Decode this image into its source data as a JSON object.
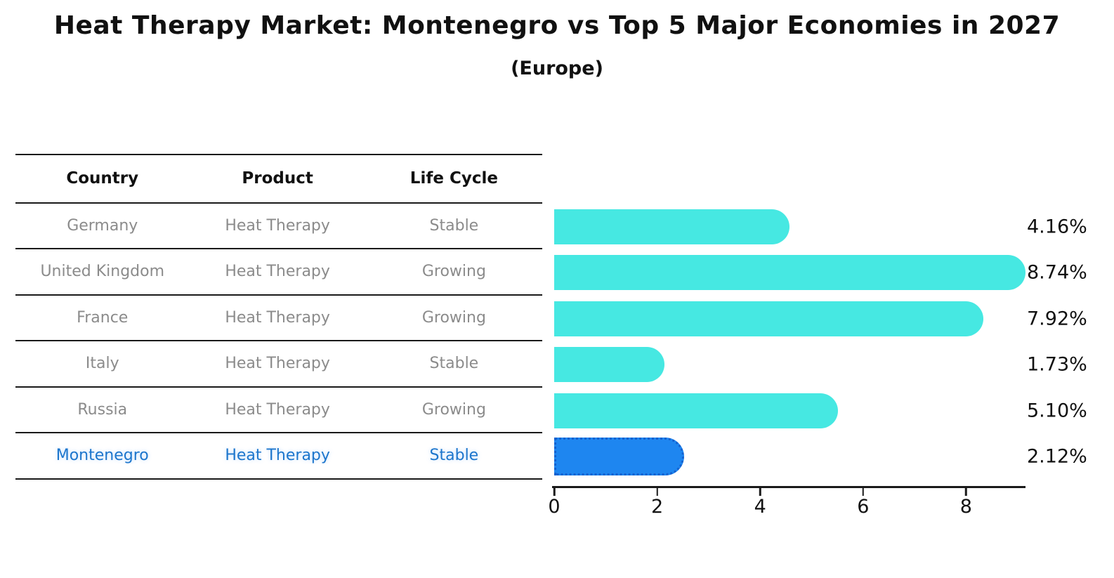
{
  "title": "Heat Therapy Market: Montenegro vs Top 5 Major Economies in 2027",
  "subtitle": "(Europe)",
  "table": {
    "headers": [
      "Country",
      "Product",
      "Life Cycle"
    ],
    "rows": [
      {
        "country": "Germany",
        "product": "Heat Therapy",
        "life_cycle": "Stable",
        "highlight": false
      },
      {
        "country": "United Kingdom",
        "product": "Heat Therapy",
        "life_cycle": "Growing",
        "highlight": false
      },
      {
        "country": "France",
        "product": "Heat Therapy",
        "life_cycle": "Growing",
        "highlight": false
      },
      {
        "country": "Italy",
        "product": "Heat Therapy",
        "life_cycle": "Stable",
        "highlight": false
      },
      {
        "country": "Russia",
        "product": "Heat Therapy",
        "life_cycle": "Growing",
        "highlight": false
      },
      {
        "country": "Montenegro",
        "product": "Heat Therapy",
        "life_cycle": "Stable",
        "highlight": true
      }
    ]
  },
  "chart_data": {
    "type": "bar",
    "orientation": "horizontal",
    "title": "Heat Therapy Market: Montenegro vs Top 5 Major Economies in 2027",
    "subtitle": "(Europe)",
    "categories": [
      "Germany",
      "United Kingdom",
      "France",
      "Italy",
      "Russia",
      "Montenegro"
    ],
    "values": [
      4.16,
      8.74,
      7.92,
      1.73,
      5.1,
      2.12
    ],
    "value_labels": [
      "4.16%",
      "8.74%",
      "7.92%",
      "1.73%",
      "5.10%",
      "2.12%"
    ],
    "xticks": [
      0,
      2,
      4,
      6,
      8
    ],
    "xlim": [
      0,
      9.2
    ],
    "xlabel": "",
    "ylabel": "",
    "grid": false,
    "legend": null,
    "highlight_category": "Montenegro",
    "bar_color": "#46E8E2",
    "highlight_bar_color": "#1E86F0",
    "highlight_border_color": "#1461CF",
    "highlight_text_color": "#1D76CC",
    "axis_color": "#1A1A1A",
    "text_color": "#111111",
    "muted_text_color": "#8B8B8B"
  }
}
